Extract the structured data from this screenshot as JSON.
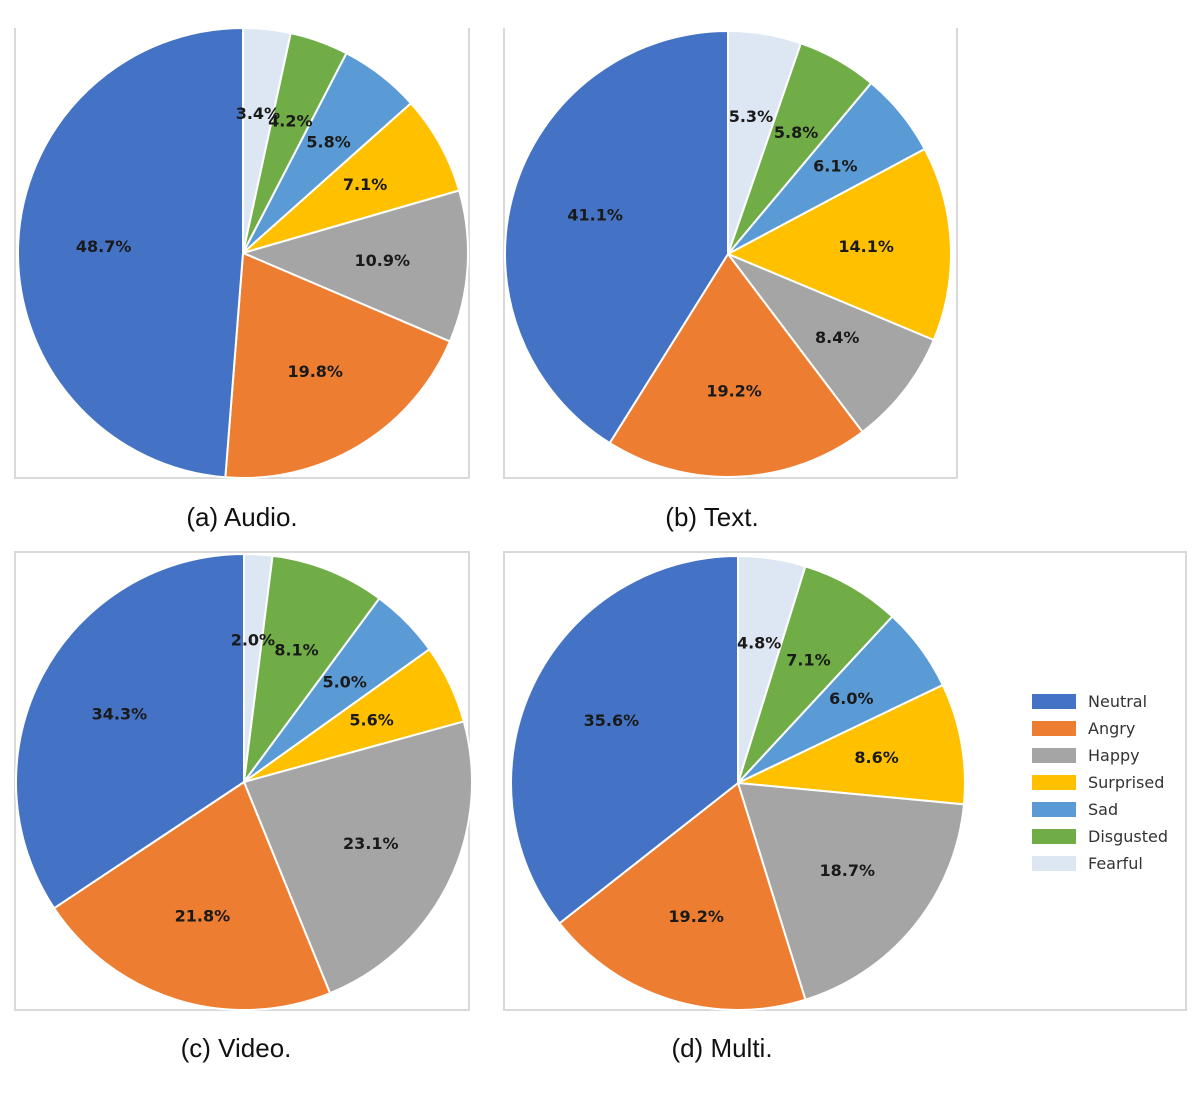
{
  "legend": {
    "items": [
      {
        "label": "Neutral",
        "color": "#4472C4"
      },
      {
        "label": "Angry",
        "color": "#ED7D31"
      },
      {
        "label": "Happy",
        "color": "#A5A5A5"
      },
      {
        "label": "Surprised",
        "color": "#FFC000"
      },
      {
        "label": "Sad",
        "color": "#5B9BD5"
      },
      {
        "label": "Disgusted",
        "color": "#70AD47"
      },
      {
        "label": "Fearful",
        "color": "#DDE6F3"
      }
    ]
  },
  "chart_data": [
    {
      "type": "pie",
      "caption": "(a) Audio.",
      "categories": [
        "Neutral",
        "Angry",
        "Happy",
        "Surprised",
        "Sad",
        "Disgusted",
        "Fearful"
      ],
      "values": [
        48.7,
        19.8,
        10.9,
        7.1,
        5.8,
        4.2,
        3.4
      ],
      "labels": [
        "48.7%",
        "19.8%",
        "10.9%",
        "7.1%",
        "5.8%",
        "4.2%",
        "3.4%"
      ]
    },
    {
      "type": "pie",
      "caption": "(b) Text.",
      "categories": [
        "Neutral",
        "Angry",
        "Happy",
        "Surprised",
        "Sad",
        "Disgusted",
        "Fearful"
      ],
      "values": [
        41.1,
        19.2,
        8.4,
        14.1,
        6.1,
        5.8,
        5.3
      ],
      "labels": [
        "41.1%",
        "19.2%",
        "8.4%",
        "14.1%",
        "6.1%",
        "5.8%",
        "5.3%"
      ]
    },
    {
      "type": "pie",
      "caption": "(c) Video.",
      "categories": [
        "Neutral",
        "Angry",
        "Happy",
        "Surprised",
        "Sad",
        "Disgusted",
        "Fearful"
      ],
      "values": [
        34.3,
        21.8,
        23.1,
        5.6,
        5.0,
        8.1,
        2.0
      ],
      "labels": [
        "34.3%",
        "21.8%",
        "23.1%",
        "5.6%",
        "5.0%",
        "8.1%",
        "2.0%"
      ]
    },
    {
      "type": "pie",
      "caption": "(d) Multi.",
      "categories": [
        "Neutral",
        "Angry",
        "Happy",
        "Surprised",
        "Sad",
        "Disgusted",
        "Fearful"
      ],
      "values": [
        35.6,
        19.2,
        18.7,
        8.6,
        6.0,
        7.1,
        4.8
      ],
      "labels": [
        "35.6%",
        "19.2%",
        "18.7%",
        "8.6%",
        "6.0%",
        "7.1%",
        "4.8%"
      ]
    }
  ]
}
